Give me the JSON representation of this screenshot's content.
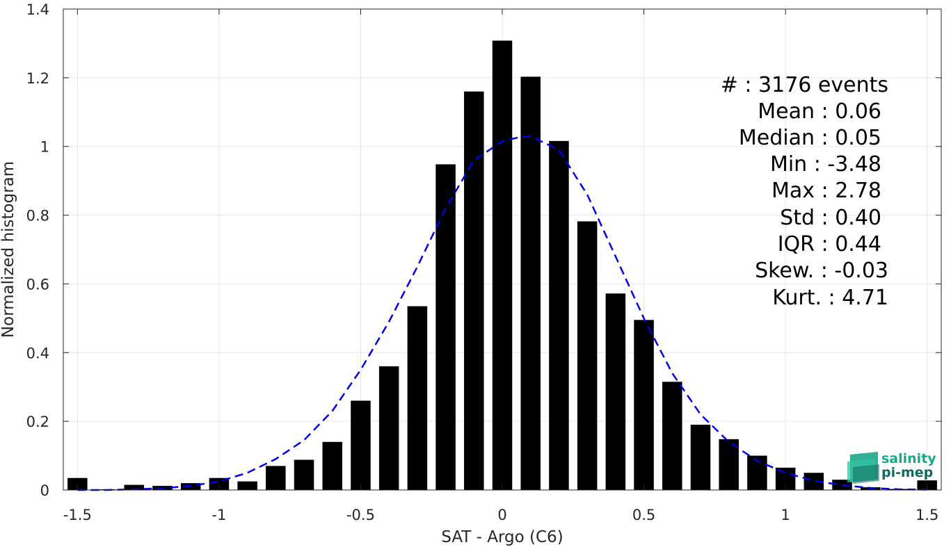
{
  "chart_data": {
    "type": "bar",
    "xlabel": "SAT - Argo (C6)",
    "ylabel": "Normalized histogram",
    "xlim": [
      -1.55,
      1.55
    ],
    "ylim": [
      0,
      1.4
    ],
    "grid": true,
    "bar_width": 0.07,
    "x_ticks": [
      -1.5,
      -1,
      -0.5,
      0,
      0.5,
      1,
      1.5
    ],
    "x_tick_labels": [
      "-1.5",
      "-1",
      "-0.5",
      "0",
      "0.5",
      "1",
      "1.5"
    ],
    "y_ticks": [
      0,
      0.2,
      0.4,
      0.6,
      0.8,
      1,
      1.2,
      1.4
    ],
    "y_tick_labels": [
      "0",
      "0.2",
      "0.4",
      "0.6",
      "0.8",
      "1",
      "1.2",
      "1.4"
    ],
    "series": [
      {
        "type": "bar",
        "color": "#000000",
        "x": [
          -1.5,
          -1.4,
          -1.3,
          -1.2,
          -1.1,
          -1.0,
          -0.9,
          -0.8,
          -0.7,
          -0.6,
          -0.5,
          -0.4,
          -0.3,
          -0.2,
          -0.1,
          0.0,
          0.1,
          0.2,
          0.3,
          0.4,
          0.5,
          0.6,
          0.7,
          0.8,
          0.9,
          1.0,
          1.1,
          1.2,
          1.3,
          1.4,
          1.5
        ],
        "values": [
          0.035,
          0.002,
          0.015,
          0.012,
          0.02,
          0.035,
          0.025,
          0.07,
          0.088,
          0.14,
          0.26,
          0.36,
          0.535,
          0.948,
          1.16,
          1.308,
          1.203,
          1.016,
          0.782,
          0.572,
          0.495,
          0.315,
          0.19,
          0.148,
          0.1,
          0.065,
          0.05,
          0.03,
          0.008,
          0.003,
          0.028
        ]
      },
      {
        "type": "line",
        "style": "dashed",
        "color": "#0000e6",
        "x": [
          -1.5,
          -1.4,
          -1.3,
          -1.2,
          -1.1,
          -1.0,
          -0.9,
          -0.8,
          -0.7,
          -0.6,
          -0.5,
          -0.4,
          -0.3,
          -0.2,
          -0.1,
          0.0,
          0.05,
          0.1,
          0.15,
          0.2,
          0.3,
          0.4,
          0.5,
          0.6,
          0.7,
          0.8,
          0.9,
          1.0,
          1.1,
          1.2,
          1.3,
          1.4,
          1.5
        ],
        "values": [
          0.0,
          0.0,
          0.002,
          0.005,
          0.012,
          0.025,
          0.05,
          0.09,
          0.145,
          0.23,
          0.35,
          0.49,
          0.65,
          0.82,
          0.96,
          1.015,
          1.025,
          1.03,
          1.01,
          0.99,
          0.86,
          0.68,
          0.5,
          0.34,
          0.22,
          0.14,
          0.085,
          0.05,
          0.027,
          0.014,
          0.006,
          0.002,
          0.001
        ]
      }
    ]
  },
  "stats": [
    "#  : 3176 events",
    "Mean : 0.06",
    "Median : 0.05",
    "Min : -3.48",
    "Max : 2.78",
    "Std : 0.40",
    "IQR : 0.44",
    "Skew. : -0.03",
    "Kurt. : 4.71"
  ],
  "logo": {
    "line1": "salinity",
    "line2": "pi-mep",
    "color_primary": "#1aa88a",
    "color_secondary": "#0f6b5e"
  }
}
